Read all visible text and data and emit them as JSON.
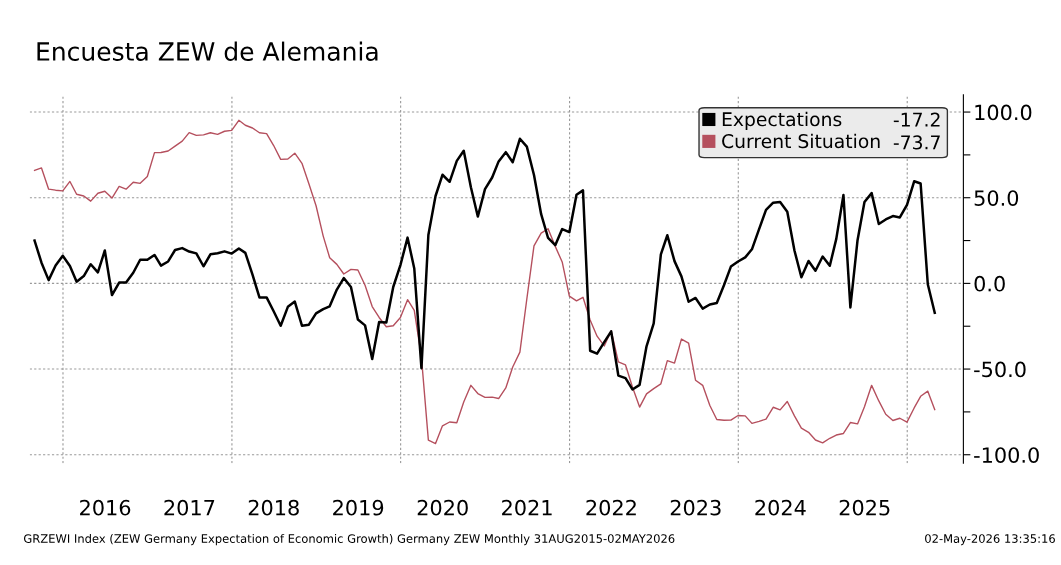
{
  "chart_data": {
    "type": "line",
    "title": "Encuesta ZEW de Alemania",
    "x": [
      "2015-08-31",
      "2015-09-30",
      "2015-10-31",
      "2015-11-30",
      "2015-12-31",
      "2016-01-31",
      "2016-02-29",
      "2016-03-31",
      "2016-04-30",
      "2016-05-31",
      "2016-06-30",
      "2016-07-31",
      "2016-08-31",
      "2016-09-30",
      "2016-10-31",
      "2016-11-30",
      "2016-12-31",
      "2017-01-31",
      "2017-02-28",
      "2017-03-31",
      "2017-04-30",
      "2017-05-31",
      "2017-06-30",
      "2017-07-31",
      "2017-08-31",
      "2017-09-30",
      "2017-10-31",
      "2017-11-30",
      "2017-12-31",
      "2018-01-31",
      "2018-02-28",
      "2018-03-31",
      "2018-04-30",
      "2018-05-31",
      "2018-06-30",
      "2018-07-31",
      "2018-08-31",
      "2018-09-30",
      "2018-10-31",
      "2018-11-30",
      "2018-12-31",
      "2019-01-31",
      "2019-02-28",
      "2019-03-31",
      "2019-04-30",
      "2019-05-31",
      "2019-06-30",
      "2019-07-31",
      "2019-08-31",
      "2019-09-30",
      "2019-10-31",
      "2019-11-30",
      "2019-12-31",
      "2020-01-31",
      "2020-02-29",
      "2020-03-31",
      "2020-04-30",
      "2020-05-31",
      "2020-06-30",
      "2020-07-31",
      "2020-08-31",
      "2020-09-30",
      "2020-10-31",
      "2020-11-30",
      "2020-12-31",
      "2021-01-31",
      "2021-02-28",
      "2021-03-31",
      "2021-04-30",
      "2021-05-31",
      "2021-06-30",
      "2021-07-31",
      "2021-08-31",
      "2021-09-30",
      "2021-10-31",
      "2021-11-30",
      "2021-12-31",
      "2022-01-31",
      "2022-02-28",
      "2022-03-31",
      "2022-04-30",
      "2022-05-31",
      "2022-06-30",
      "2022-07-31",
      "2022-08-31",
      "2022-09-30",
      "2022-10-31",
      "2022-11-30",
      "2022-12-31",
      "2023-01-31",
      "2023-02-28",
      "2023-03-31",
      "2023-04-30",
      "2023-05-31",
      "2023-06-30",
      "2023-07-31",
      "2023-08-31",
      "2023-09-30",
      "2023-10-31",
      "2023-11-30",
      "2023-12-31",
      "2024-01-31",
      "2024-02-29",
      "2024-03-31",
      "2024-04-30",
      "2024-05-31",
      "2024-06-30",
      "2024-07-31",
      "2024-08-31",
      "2024-09-30",
      "2024-10-31",
      "2024-11-30",
      "2024-12-31",
      "2025-01-31",
      "2025-02-28",
      "2025-03-31",
      "2025-04-30",
      "2025-05-31",
      "2025-06-30",
      "2025-07-31",
      "2025-08-31",
      "2025-09-30",
      "2025-10-31",
      "2025-11-30",
      "2025-12-31",
      "2026-01-31",
      "2026-02-28",
      "2026-03-31",
      "2026-04-30"
    ],
    "series": [
      {
        "name": "Expectations",
        "color": "#000000",
        "values": [
          25,
          12.1,
          1.9,
          10.4,
          16.1,
          10.2,
          1,
          4.3,
          11.2,
          6.4,
          19.2,
          -6.8,
          0.5,
          0.5,
          6.2,
          13.8,
          13.8,
          16.6,
          10.4,
          12.8,
          19.5,
          20.6,
          18.6,
          17.5,
          10,
          17,
          17.6,
          18.7,
          17.4,
          20.4,
          17.8,
          5.1,
          -8.2,
          -8.2,
          -16.1,
          -24.7,
          -13.7,
          -10.6,
          -24.7,
          -24.1,
          -17.5,
          -15,
          -13.4,
          -3.6,
          3.1,
          -2.1,
          -21.1,
          -24.5,
          -44.1,
          -22.5,
          -22.8,
          -2.1,
          10.7,
          26.7,
          8.7,
          -49.5,
          28.2,
          51,
          63.4,
          59.3,
          71.5,
          77.4,
          56.1,
          39,
          55,
          61.8,
          71.2,
          76.6,
          70.7,
          84.4,
          79.8,
          63.3,
          40.4,
          26.5,
          22.3,
          31.7,
          29.9,
          51.7,
          54.3,
          -39.3,
          -41,
          -34.3,
          -28,
          -53.8,
          -55.3,
          -61.9,
          -59.2,
          -36.7,
          -23.3,
          16.9,
          28.1,
          13,
          4.1,
          -10.7,
          -8.5,
          -14.7,
          -12.3,
          -11.4,
          -1.1,
          9.8,
          12.8,
          15.2,
          19.9,
          31.7,
          42.9,
          47.1,
          47.5,
          41.8,
          19.2,
          3.6,
          13.1,
          7.4,
          15.7,
          10.3,
          26,
          51.6,
          -14,
          25.2,
          47.5,
          52.7,
          34.7,
          37.3,
          39.3,
          38.5,
          45.8,
          59.6,
          58.3,
          -0.5,
          -17.2
        ]
      },
      {
        "name": "Current Situation",
        "color": "#b5505e",
        "values": [
          66,
          67.4,
          55,
          54.4,
          54,
          59.5,
          52,
          51,
          48,
          52.6,
          53.8,
          49.8,
          56.6,
          55,
          59,
          58.4,
          62.4,
          76.3,
          76.4,
          77.3,
          80.1,
          83,
          88,
          86.4,
          86.7,
          87.9,
          87,
          88.8,
          89.3,
          95.2,
          92.3,
          90.7,
          87.9,
          87.4,
          80.6,
          72.4,
          72.6,
          76,
          70.1,
          58.2,
          45.3,
          27.6,
          15,
          11.1,
          5.5,
          8.2,
          7.8,
          -1.1,
          -13.5,
          -19.9,
          -25.3,
          -24.7,
          -19.9,
          -9.5,
          -15.7,
          -43.1,
          -91.5,
          -93.5,
          -83.1,
          -80.9,
          -81.3,
          -69.2,
          -59.5,
          -64.3,
          -66.5,
          -66.4,
          -67.2,
          -61,
          -48.8,
          -40.1,
          -9.1,
          21.9,
          29.3,
          31.9,
          21.6,
          12.5,
          -7.4,
          -10.2,
          -8.1,
          -21.4,
          -30.8,
          -36.5,
          -27.6,
          -45.8,
          -47.6,
          -60.5,
          -72.2,
          -64.5,
          -61.4,
          -58.6,
          -45.1,
          -46.5,
          -32.5,
          -34.8,
          -56.5,
          -59.5,
          -71.3,
          -79.4,
          -79.9,
          -79.8,
          -77.1,
          -77.3,
          -81.7,
          -80.5,
          -79.2,
          -72.3,
          -73.8,
          -68.9,
          -77.3,
          -84.5,
          -86.9,
          -91.4,
          -93.1,
          -90.4,
          -88.5,
          -87.6,
          -81.2,
          -82,
          -72,
          -59.5,
          -68.6,
          -76.4,
          -80,
          -78.7,
          -81,
          -72.7,
          -65.9,
          -62.9,
          -73.7
        ]
      }
    ],
    "xlim": [
      "2015-08-10",
      "2026-09-01"
    ],
    "xticks": [
      {
        "value": "2016-01-01",
        "label": null
      },
      {
        "value": "2016-07-01",
        "label": "2016"
      },
      {
        "value": "2017-07-01",
        "label": "2017"
      },
      {
        "value": "2018-01-01",
        "label": null
      },
      {
        "value": "2018-07-01",
        "label": "2018"
      },
      {
        "value": "2019-07-01",
        "label": "2019"
      },
      {
        "value": "2020-01-01",
        "label": null
      },
      {
        "value": "2020-07-01",
        "label": "2020"
      },
      {
        "value": "2021-07-01",
        "label": "2021"
      },
      {
        "value": "2022-01-01",
        "label": null
      },
      {
        "value": "2022-07-01",
        "label": "2022"
      },
      {
        "value": "2023-07-01",
        "label": "2023"
      },
      {
        "value": "2024-01-01",
        "label": null
      },
      {
        "value": "2024-07-01",
        "label": "2024"
      },
      {
        "value": "2025-07-01",
        "label": "2025"
      },
      {
        "value": "2026-01-01",
        "label": null
      }
    ],
    "ylim": [
      -105,
      110
    ],
    "yticks": [
      {
        "value": 100,
        "label": "100.0"
      },
      {
        "value": 75,
        "label": null
      },
      {
        "value": 50,
        "label": "50.0"
      },
      {
        "value": 25,
        "label": null
      },
      {
        "value": 0,
        "label": "0.0"
      },
      {
        "value": -25,
        "label": null
      },
      {
        "value": -50,
        "label": "-50.0"
      },
      {
        "value": -75,
        "label": null
      },
      {
        "value": -100,
        "label": "-100.0"
      }
    ],
    "grid": true,
    "legend": "top right",
    "marker": "none",
    "line_style": "solid",
    "annotations": [
      "-17.2",
      "-73.7",
      "GRZEWI Index (ZEW Germany Expectation of Economic Growth) Germany ZEW Monthly 31AUG2015-02MAY2026",
      "02-May-2026 13:35:16"
    ]
  }
}
